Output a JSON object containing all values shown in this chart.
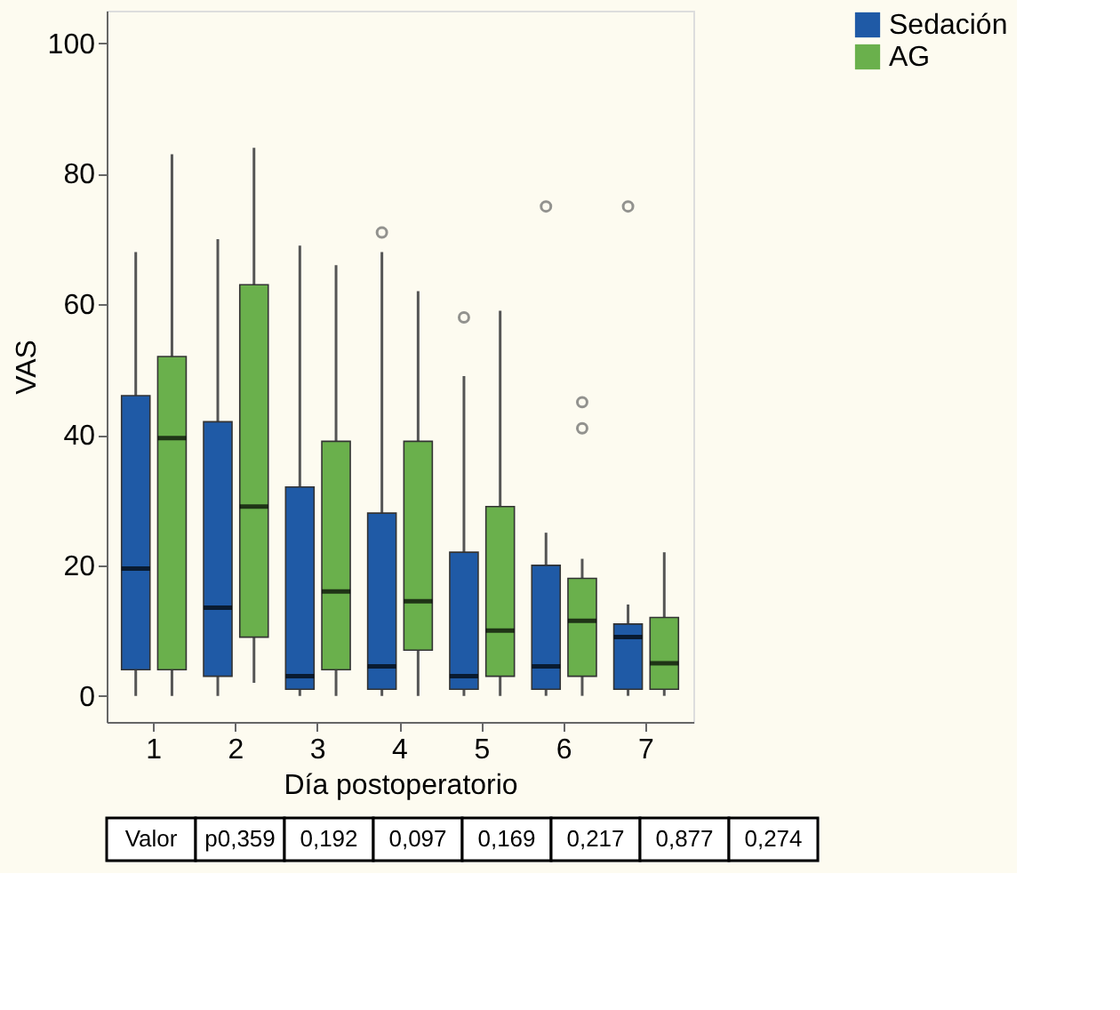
{
  "chart_data": {
    "type": "box",
    "xlabel": "Día postoperatorio",
    "ylabel": "VAS",
    "categories": [
      "1",
      "2",
      "3",
      "4",
      "5",
      "6",
      "7"
    ],
    "ylim": [
      -4,
      105
    ],
    "yticks": [
      0,
      20,
      40,
      60,
      80,
      100
    ],
    "grid": false,
    "legend": "top right",
    "series": [
      {
        "name": "Sedación",
        "color": "#1f5aa6",
        "boxes": [
          {
            "low": 0,
            "q1": 4,
            "median": 19.5,
            "q3": 46,
            "high": 68
          },
          {
            "low": 0,
            "q1": 3,
            "median": 13.5,
            "q3": 42,
            "high": 70
          },
          {
            "low": 0,
            "q1": 1,
            "median": 3,
            "q3": 32,
            "high": 69
          },
          {
            "low": 0,
            "q1": 1,
            "median": 4.5,
            "q3": 28,
            "high": 68,
            "outliers": [
              71
            ]
          },
          {
            "low": 0,
            "q1": 1,
            "median": 3,
            "q3": 22,
            "high": 49,
            "outliers": [
              58
            ]
          },
          {
            "low": 0,
            "q1": 1,
            "median": 4.5,
            "q3": 20,
            "high": 25,
            "outliers": [
              75
            ]
          },
          {
            "low": 0,
            "q1": 1,
            "median": 9,
            "q3": 11,
            "high": 14,
            "outliers": [
              75
            ]
          }
        ]
      },
      {
        "name": "AG",
        "color": "#6ab04c",
        "boxes": [
          {
            "low": 0,
            "q1": 4,
            "median": 39.5,
            "q3": 52,
            "high": 83
          },
          {
            "low": 2,
            "q1": 9,
            "median": 29,
            "q3": 63,
            "high": 84
          },
          {
            "low": 0,
            "q1": 4,
            "median": 16,
            "q3": 39,
            "high": 66
          },
          {
            "low": 0,
            "q1": 7,
            "median": 14.5,
            "q3": 39,
            "high": 62
          },
          {
            "low": 0,
            "q1": 3,
            "median": 10,
            "q3": 29,
            "high": 59
          },
          {
            "low": 0,
            "q1": 3,
            "median": 11.5,
            "q3": 18,
            "high": 21,
            "outliers": [
              41,
              45
            ]
          },
          {
            "low": 0,
            "q1": 1,
            "median": 5,
            "q3": 12,
            "high": 22
          }
        ]
      }
    ],
    "annotations": [
      "Valor",
      "p0,359",
      "0,192",
      "0,097",
      "0,169",
      "0,217",
      "0,877",
      "0,274"
    ]
  }
}
